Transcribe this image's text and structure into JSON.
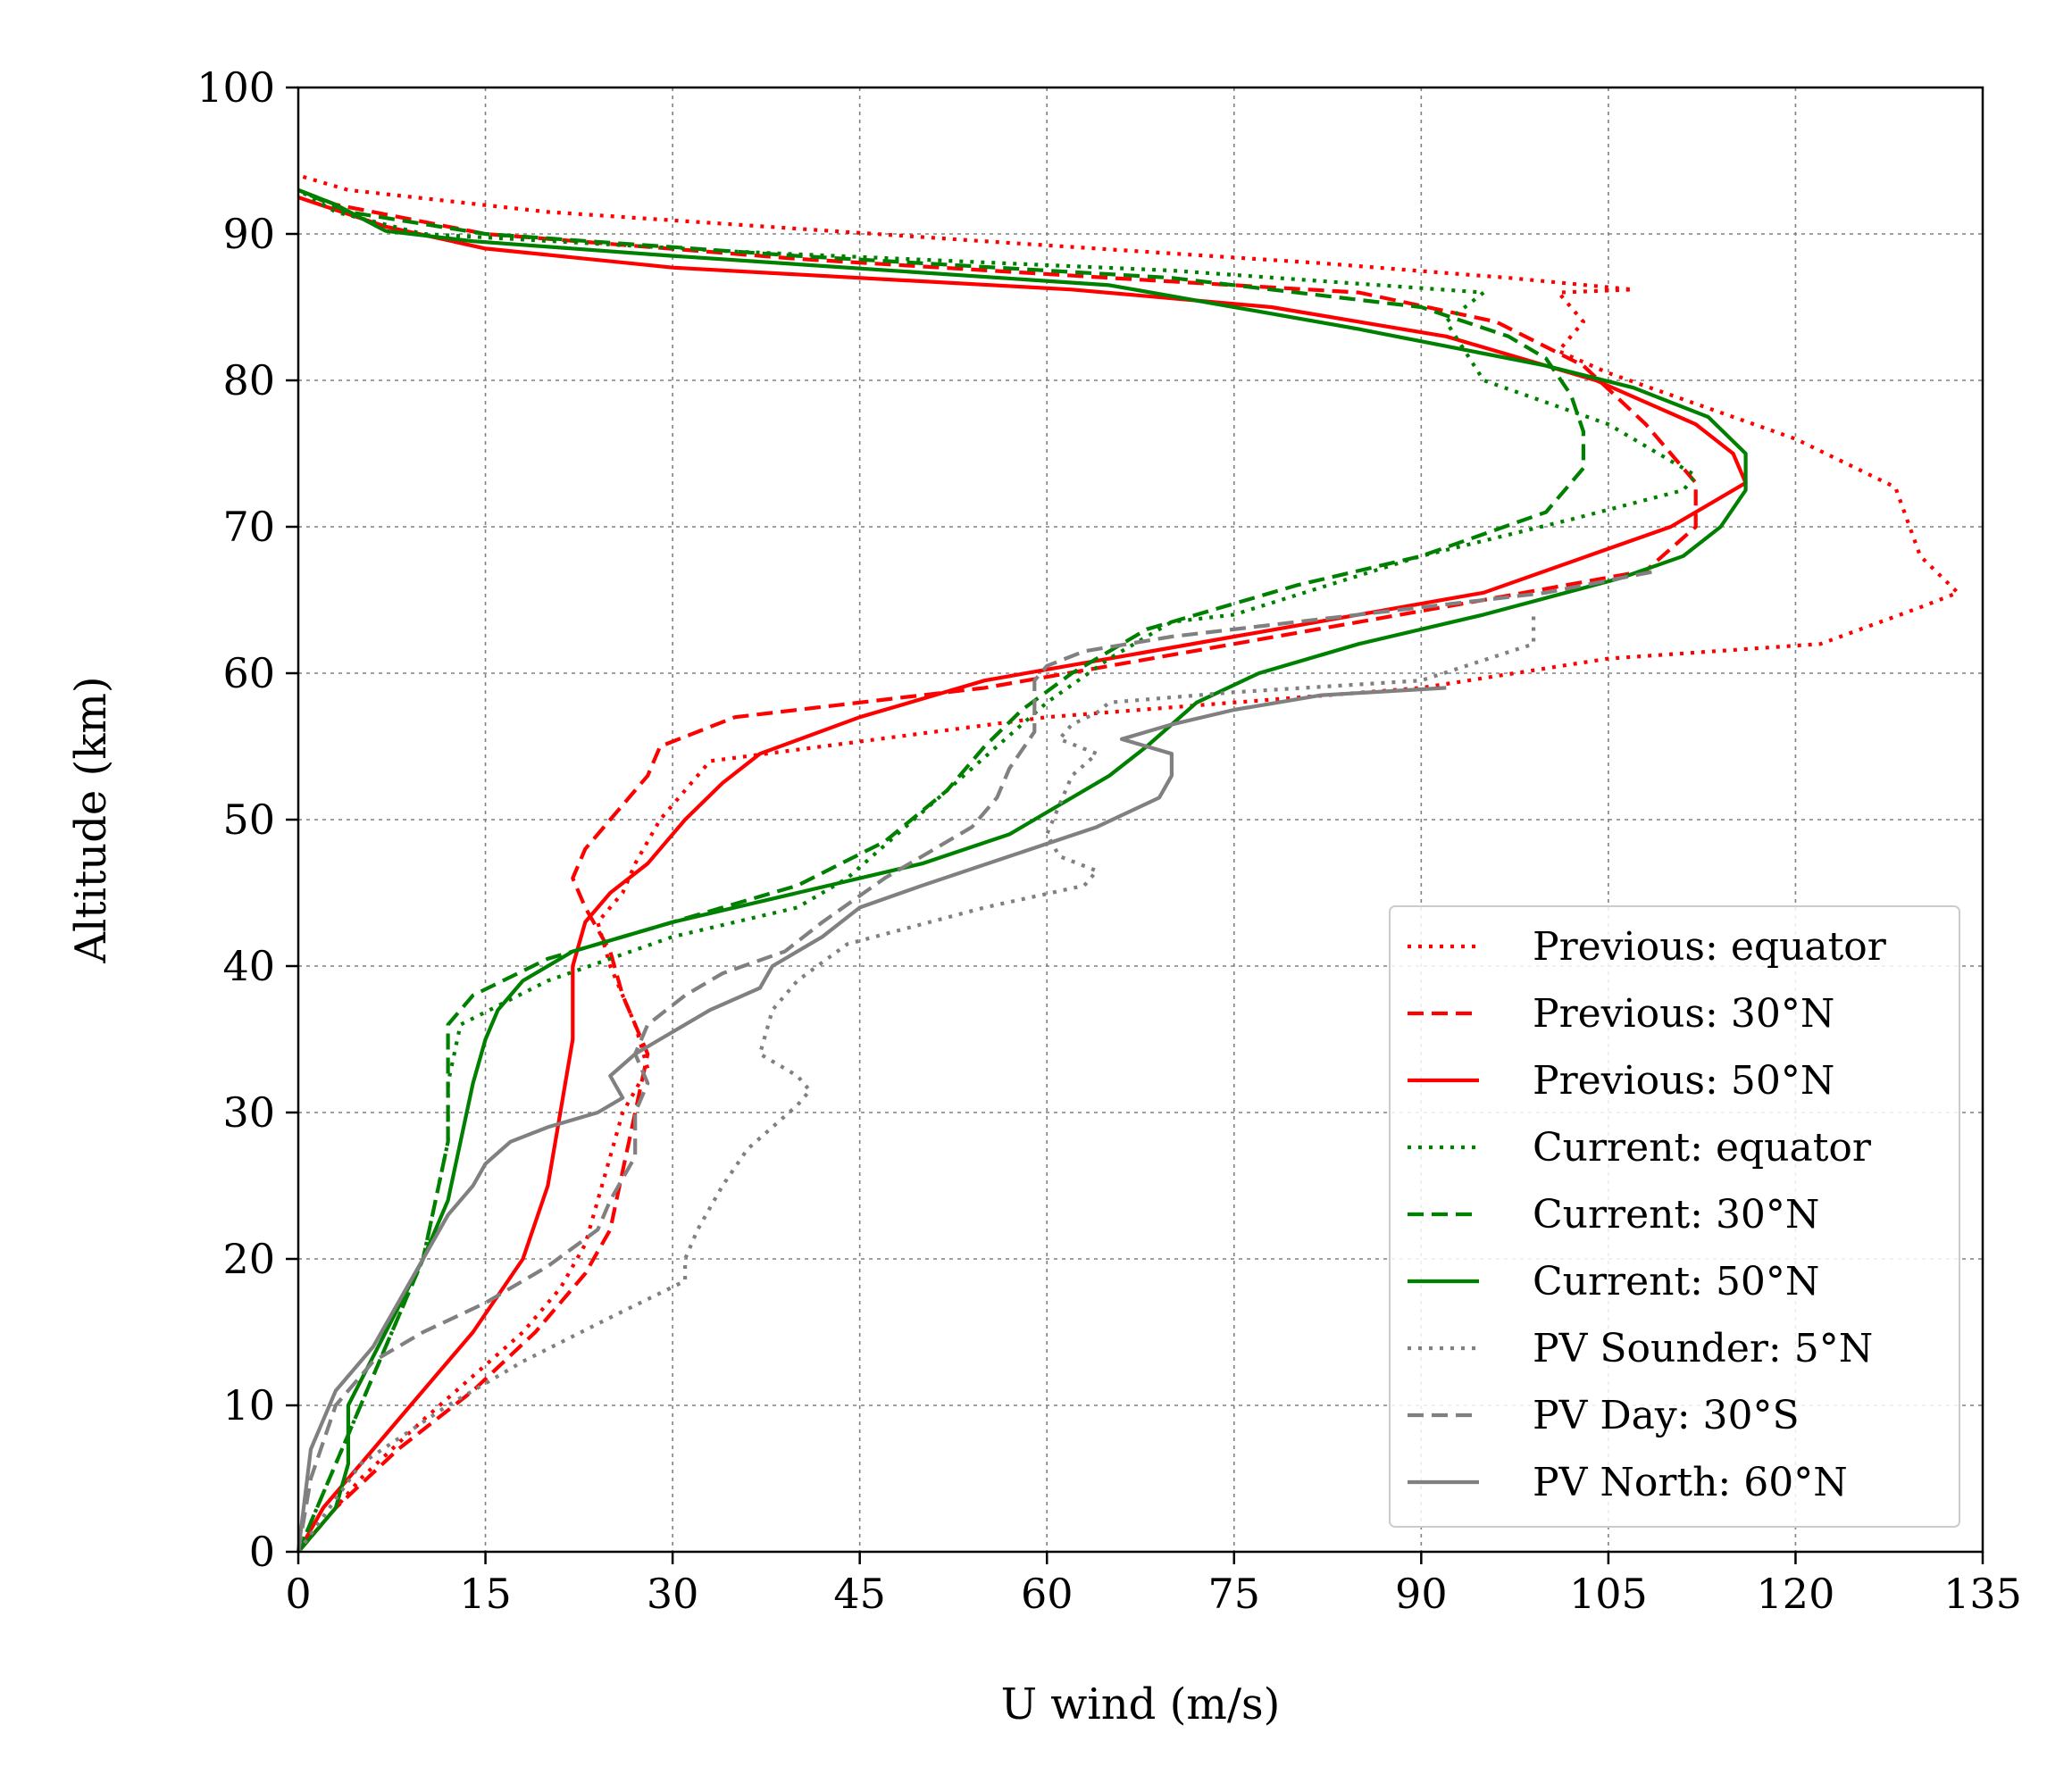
{
  "chart_data": {
    "type": "line",
    "title": "",
    "xlabel": "U wind (m/s)",
    "ylabel": "Altitude (km)",
    "xlim": [
      0,
      135
    ],
    "ylim": [
      0,
      100
    ],
    "xticks": [
      0,
      15,
      30,
      45,
      60,
      75,
      90,
      105,
      120,
      135
    ],
    "yticks": [
      0,
      10,
      20,
      30,
      40,
      50,
      60,
      70,
      80,
      90,
      100
    ],
    "xtick_labels": [
      "0",
      "15",
      "30",
      "45",
      "60",
      "75",
      "90",
      "105",
      "120",
      "135"
    ],
    "ytick_labels": [
      "0",
      "10",
      "20",
      "30",
      "40",
      "50",
      "60",
      "70",
      "80",
      "90",
      "100"
    ],
    "grid": true,
    "legend_position": "lower-right",
    "colors": {
      "previous": "#ff0000",
      "current": "#008000",
      "pv": "#808080"
    },
    "series": [
      {
        "name": "Previous: equator",
        "color": "#ff0000",
        "style": "dotted",
        "x": [
          0,
          5,
          10,
          14,
          18,
          21,
          23,
          24,
          25,
          26,
          28,
          27,
          26,
          25,
          24,
          26,
          27,
          29,
          33,
          60,
          90,
          105,
          122,
          130,
          133,
          130,
          128,
          120,
          105,
          101,
          103,
          101,
          107,
          97,
          82,
          55,
          20,
          4,
          0
        ],
        "y": [
          0,
          5,
          9,
          12,
          15,
          18,
          21,
          24,
          27,
          30,
          33,
          36,
          38,
          40,
          43,
          45,
          47,
          50,
          54,
          57,
          59,
          61,
          62,
          64.5,
          65.5,
          68,
          72.7,
          76,
          80.5,
          82,
          84,
          86,
          86.2,
          87,
          88,
          89.5,
          91.5,
          93,
          94
        ]
      },
      {
        "name": "Previous: 30°N",
        "color": "#ff0000",
        "style": "dashed",
        "x": [
          0,
          3,
          8,
          14,
          19,
          23,
          25,
          26,
          27,
          28,
          27,
          26,
          25,
          23,
          22,
          23,
          28,
          29,
          35,
          55,
          75,
          95,
          108,
          112,
          112,
          108,
          103,
          96,
          85,
          65,
          40,
          15,
          3,
          0
        ],
        "y": [
          0,
          3,
          7,
          11,
          15,
          19,
          22,
          26,
          30,
          34,
          36,
          38,
          41,
          44,
          46,
          48,
          53,
          55,
          57,
          59,
          62,
          65,
          67,
          70,
          73,
          77,
          81,
          84,
          86,
          87,
          88.3,
          90,
          92,
          93
        ]
      },
      {
        "name": "Previous: 50°N",
        "color": "#ff0000",
        "style": "solid",
        "x": [
          0,
          2,
          5,
          9,
          14,
          18,
          20,
          21,
          22,
          22,
          23,
          25,
          28,
          31,
          34,
          37,
          45,
          55,
          75,
          95,
          110,
          116,
          115,
          112,
          104,
          92,
          78,
          62,
          30,
          15,
          7,
          0
        ],
        "y": [
          0,
          3,
          6,
          10,
          15,
          20,
          25,
          30,
          35,
          40,
          43,
          45,
          47,
          50,
          52.5,
          54.5,
          57,
          59.5,
          62.5,
          65.5,
          70,
          73,
          75,
          77,
          80,
          83,
          85,
          86.2,
          87.7,
          89,
          90.5,
          92.5
        ]
      },
      {
        "name": "Current: equator",
        "color": "#008000",
        "style": "dotted",
        "x": [
          0,
          2,
          4,
          6,
          8,
          10,
          11,
          12,
          12,
          13,
          20,
          30,
          40,
          44,
          48,
          52,
          56,
          60,
          65,
          70,
          75,
          90,
          102,
          111,
          112,
          105,
          95,
          92,
          95,
          70,
          35,
          10,
          3,
          0
        ],
        "y": [
          0,
          4,
          8,
          12,
          16,
          20,
          24,
          28,
          32,
          36,
          39,
          42,
          44,
          46,
          49,
          52,
          55,
          58,
          61,
          63.5,
          64,
          68,
          70.5,
          72.5,
          73.5,
          77,
          80,
          84,
          86,
          87.5,
          88.8,
          90,
          91.5,
          93
        ]
      },
      {
        "name": "Current: 30°N",
        "color": "#008000",
        "style": "dashed",
        "x": [
          0,
          2,
          4,
          6,
          8,
          10,
          11,
          12,
          12,
          12,
          14,
          20,
          30,
          40,
          47,
          52,
          55,
          58,
          62,
          68,
          80,
          90,
          100,
          103,
          103,
          102,
          100,
          97,
          90,
          70,
          40,
          15,
          4,
          0
        ],
        "y": [
          0,
          4,
          8,
          12,
          16,
          20,
          24,
          28,
          32,
          36,
          38,
          40.5,
          43,
          45.5,
          48.5,
          52,
          55,
          57.5,
          60,
          63,
          66,
          68,
          71,
          74,
          76.5,
          79,
          81.5,
          83,
          85,
          87,
          88.5,
          90,
          91.5,
          93
        ]
      },
      {
        "name": "Current: 50°N",
        "color": "#008000",
        "style": "solid",
        "x": [
          0,
          3,
          4,
          4,
          7,
          10,
          12,
          13,
          14,
          15,
          16,
          18,
          22,
          30,
          40,
          50,
          57,
          61,
          65,
          68,
          72,
          77,
          85,
          95,
          106,
          111,
          114,
          116,
          116,
          113,
          107,
          100,
          85,
          65,
          30,
          14,
          7,
          3,
          0
        ],
        "y": [
          0,
          3,
          6,
          10,
          15,
          20,
          24,
          28,
          32,
          35,
          37,
          39,
          41,
          43,
          45,
          47,
          49,
          51,
          53,
          55,
          58,
          60,
          62,
          64,
          66.5,
          68,
          70,
          72.5,
          75,
          77.5,
          79.5,
          81,
          83.5,
          86.5,
          88.5,
          89.5,
          90.2,
          92,
          93
        ]
      },
      {
        "name": "PV Sounder: 5°N",
        "color": "#808080",
        "style": "dotted",
        "x": [
          0,
          5,
          12,
          18,
          25,
          31,
          31,
          32,
          34,
          36,
          38,
          40,
          41,
          40,
          37,
          38,
          40,
          44,
          55,
          63,
          64,
          61,
          60,
          61,
          62,
          64,
          61,
          62,
          64,
          65,
          75,
          90,
          99,
          99
        ],
        "y": [
          0,
          6,
          10,
          13,
          16,
          18.5,
          20,
          22,
          25,
          27.5,
          29,
          30.5,
          31.5,
          32.5,
          34,
          37,
          39,
          41.5,
          44,
          45.5,
          46.5,
          47.5,
          49,
          51,
          53,
          54.5,
          55.5,
          56.5,
          57.3,
          58,
          58.7,
          59.5,
          62,
          64
        ]
      },
      {
        "name": "PV Day: 30°S",
        "color": "#808080",
        "style": "dashed",
        "x": [
          0,
          1,
          3,
          6,
          10,
          15,
          20,
          24,
          25,
          27,
          27,
          28,
          27,
          28,
          31,
          34,
          39,
          42,
          47,
          54,
          56,
          57,
          59,
          59,
          59,
          59,
          60,
          63,
          70,
          85,
          100,
          109
        ],
        "y": [
          0,
          5,
          10,
          13,
          15,
          17,
          19.5,
          22,
          24,
          27,
          30,
          32,
          34,
          36,
          38,
          39.5,
          41,
          43,
          46,
          49.5,
          51.5,
          53.5,
          56,
          57.5,
          58.5,
          59.5,
          60.5,
          61.5,
          62.5,
          64,
          65.5,
          67
        ]
      },
      {
        "name": "PV North: 60°N",
        "color": "#808080",
        "style": "solid",
        "x": [
          0,
          1,
          3,
          6,
          8,
          10,
          12,
          14,
          15,
          17,
          20,
          24,
          26,
          25,
          27,
          29,
          33,
          37,
          38,
          42,
          45,
          50,
          57,
          64,
          69,
          70,
          70,
          66,
          70,
          75,
          82,
          92
        ],
        "y": [
          0,
          7,
          11,
          14,
          17,
          20,
          23,
          25,
          26.5,
          28,
          29,
          30,
          31,
          32.5,
          34,
          35,
          37,
          38.5,
          40,
          42,
          44,
          45.5,
          47.5,
          49.5,
          51.5,
          53,
          54.5,
          55.5,
          56.5,
          57.5,
          58.5,
          59
        ]
      }
    ]
  }
}
